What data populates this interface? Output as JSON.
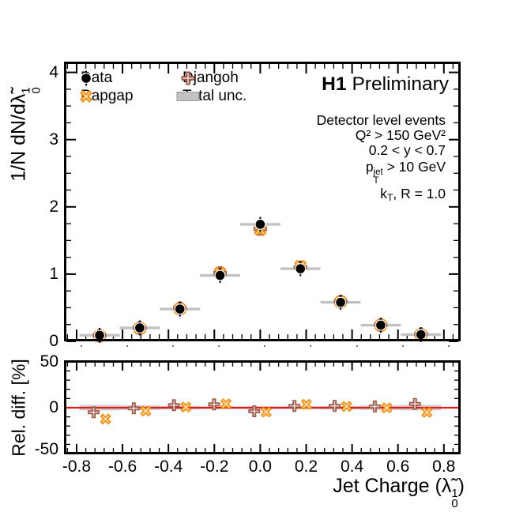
{
  "title": {
    "h1": "H1",
    "preliminary": "Preliminary"
  },
  "legend": {
    "items": [
      {
        "label": "Data",
        "marker": "circle",
        "color": "#000000"
      },
      {
        "label": "Rapgap",
        "marker": "x-cross",
        "color": "#f98c00"
      },
      {
        "label": "Djangoh",
        "marker": "plus-cross",
        "color": "#9c5746"
      },
      {
        "label": "Total unc.",
        "marker": "band",
        "color": "#c2c2c2"
      }
    ]
  },
  "info": {
    "line1": "Detector level events",
    "line2": "Q² > 150 GeV²",
    "line3": "0.2 < y < 0.7",
    "pt_p": "p",
    "pt_sup": "jet",
    "pt_sub": "T",
    "pt_rest": " > 10 GeV",
    "kt_k": "k",
    "kt_sub": "T",
    "kt_rest": ", R = 1.0"
  },
  "axes": {
    "y_main_prefix": "1/N dN/d",
    "lambda": "λ̃",
    "lambda_sup": "1",
    "lambda_sub": "0",
    "x_title_prefix": "Jet Charge (",
    "x_title_suffix": ")",
    "ratio_y_title": "Rel. diff. [%]"
  },
  "chart_data": {
    "type": "scatter",
    "title": "H1 Preliminary",
    "xlabel": "Jet Charge (lambda-tilde_0^1)",
    "annotations": [
      "Detector level events",
      "Q^2 > 150 GeV^2",
      "0.2 < y < 0.7",
      "p_T^jet > 10 GeV",
      "k_T, R = 1.0"
    ],
    "xlim": [
      -0.855,
      0.873
    ],
    "x_ticks": {
      "values": [
        -0.8,
        -0.6,
        -0.4,
        -0.2,
        0.0,
        0.2,
        0.4,
        0.6,
        0.8
      ],
      "labels": [
        "-0.8",
        "-0.6",
        "-0.4",
        "-0.2",
        "0.0",
        "0.2",
        "0.4",
        "0.6",
        "0.8"
      ]
    },
    "x_minor_step": 0.04,
    "main_panel": {
      "ylabel": "1/N dN/d lambda-tilde_0^1",
      "ylim": [
        0,
        4.16
      ],
      "y_ticks": [
        0,
        1,
        2,
        3,
        4
      ],
      "y_tick_labels": [
        "0",
        "1",
        "2",
        "3",
        "4"
      ],
      "y_minor_step": 0.25
    },
    "ratio_panel": {
      "ylabel": "Rel. diff. [%]",
      "ylim": [
        -50.8,
        51.6
      ],
      "y_ticks": [
        -50,
        0,
        50
      ],
      "y_tick_labels": [
        "-50",
        "0",
        "50"
      ],
      "y_minor_step": 10,
      "zero_line_value": 0,
      "zero_line_color": "#e41a1a"
    },
    "bins": {
      "centers": [
        -0.7,
        -0.525,
        -0.35,
        -0.175,
        0.0,
        0.175,
        0.35,
        0.525,
        0.7
      ],
      "half_width": 0.0875
    },
    "series": [
      {
        "name": "Data",
        "marker": "circle",
        "color": "#000000",
        "values": [
          0.09,
          0.2,
          0.48,
          0.98,
          1.74,
          1.08,
          0.58,
          0.24,
          0.1
        ]
      },
      {
        "name": "Rapgap",
        "marker": "x-cross",
        "color": "#f98c00",
        "rel_diff_pct": [
          -12.4,
          -3.6,
          0.7,
          4.1,
          -4.7,
          3.6,
          1.3,
          -0.2,
          -5.0
        ]
      },
      {
        "name": "Djangoh",
        "marker": "plus-cross",
        "color": "#9c5746",
        "rel_diff_pct": [
          -5.0,
          -0.7,
          2.7,
          3.6,
          -3.9,
          1.9,
          1.9,
          1.3,
          4.1
        ]
      },
      {
        "name": "Total unc.",
        "marker": "band",
        "color": "#c2c2c2",
        "ratio_half_height_pct": [
          3.0,
          2.5,
          2.0,
          1.5,
          1.5,
          1.5,
          2.0,
          2.5,
          3.0
        ]
      }
    ],
    "ratio_marker_x_offset": 0.026,
    "legend_position": "top-left",
    "grid": false
  }
}
